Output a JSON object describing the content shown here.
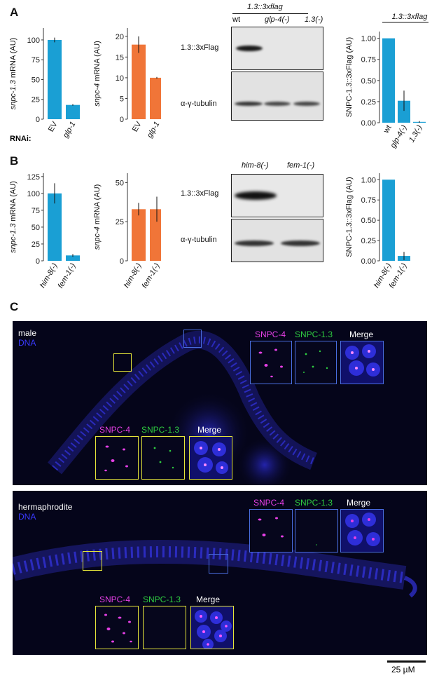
{
  "panel_labels": {
    "a": "A",
    "b": "B",
    "c": "C"
  },
  "rnai_label": "RNAi:",
  "colors": {
    "blue_bar": "#1a9fd4",
    "orange_bar": "#f07538",
    "magenta": "#e640e6",
    "green": "#2ecc40",
    "dna": "#3a3aff",
    "yellow_box": "#e5e53a",
    "blue_box": "#4a6ee0"
  },
  "chart_data": [
    {
      "id": "A1",
      "type": "bar",
      "ylabel_gene": "snpc-1.3",
      "ylabel_rest": " mRNA  (AU)",
      "categories": [
        "EV",
        "glp-1"
      ],
      "values": [
        100,
        18
      ],
      "errors": [
        3,
        1
      ],
      "yticks": [
        0,
        25,
        50,
        75,
        100
      ],
      "ylim": [
        0,
        115
      ],
      "color": "#1a9fd4"
    },
    {
      "id": "A2",
      "type": "bar",
      "ylabel_gene": "snpc-4",
      "ylabel_rest": " mRNA  (AU)",
      "categories": [
        "EV",
        "glp-1"
      ],
      "values": [
        18,
        10
      ],
      "errors": [
        2,
        0.2
      ],
      "yticks": [
        0,
        5,
        10,
        15,
        20
      ],
      "ylim": [
        0,
        22
      ],
      "color": "#f07538"
    },
    {
      "id": "A3",
      "type": "bar",
      "ylabel": "SNPC-1.3::3xFlag (AU)",
      "group_label": "1.3::3xflag",
      "categories": [
        "wt",
        "glp-4(-)",
        "1.3(-)"
      ],
      "values": [
        1.0,
        0.26,
        0.01
      ],
      "errors": [
        0,
        0.12,
        0.01
      ],
      "yticks": [
        "0.00",
        "0.25",
        "0.50",
        "0.75",
        "1.00"
      ],
      "ylim": [
        0,
        1.08
      ],
      "color": "#1a9fd4"
    },
    {
      "id": "B1",
      "type": "bar",
      "ylabel_gene": "snpc-1.3",
      "ylabel_rest": " mRNA  (AU)",
      "categories": [
        "him-8(-)",
        "fem-1(-)"
      ],
      "values": [
        100,
        8
      ],
      "errors": [
        15,
        2
      ],
      "yticks": [
        0,
        25,
        50,
        75,
        100,
        125
      ],
      "ylim": [
        0,
        130
      ],
      "color": "#1a9fd4"
    },
    {
      "id": "B2",
      "type": "bar",
      "ylabel_gene": "snpc-4",
      "ylabel_rest": " mRNA  (AU)",
      "categories": [
        "him-8(-)",
        "fem-1(-)"
      ],
      "values": [
        33,
        33
      ],
      "errors": [
        4,
        8
      ],
      "yticks": [
        0,
        25,
        50
      ],
      "ylim": [
        0,
        56
      ],
      "color": "#f07538"
    },
    {
      "id": "B3",
      "type": "bar",
      "ylabel": "SNPC-1.3::3xFlag (AU)",
      "categories": [
        "him-8(-)",
        "fem-1(-)"
      ],
      "values": [
        1.0,
        0.06
      ],
      "errors": [
        0,
        0.05
      ],
      "yticks": [
        "0.00",
        "0.25",
        "0.50",
        "0.75",
        "1.00"
      ],
      "ylim": [
        0,
        1.08
      ],
      "color": "#1a9fd4"
    }
  ],
  "blot_a": {
    "header": "1.3::3xflag",
    "lanes": [
      "wt",
      "glp-4(-)",
      "1.3(-)"
    ],
    "flag_label": "1.3::3xFlag",
    "tubulin_label": "α-γ-tubulin"
  },
  "blot_b": {
    "lanes": [
      "him-8(-)",
      "fem-1(-)"
    ],
    "flag_label": "1.3::3xFlag",
    "tubulin_label": "α-γ-tubulin"
  },
  "micro_male": {
    "sex": "male",
    "stain": "DNA",
    "inset_labels": [
      "SNPC-4",
      "SNPC-1.3",
      "Merge"
    ]
  },
  "micro_herm": {
    "sex": "hermaphrodite",
    "stain": "DNA",
    "inset_labels": [
      "SNPC-4",
      "SNPC-1.3",
      "Merge"
    ]
  },
  "scale_bar": "25 µM"
}
